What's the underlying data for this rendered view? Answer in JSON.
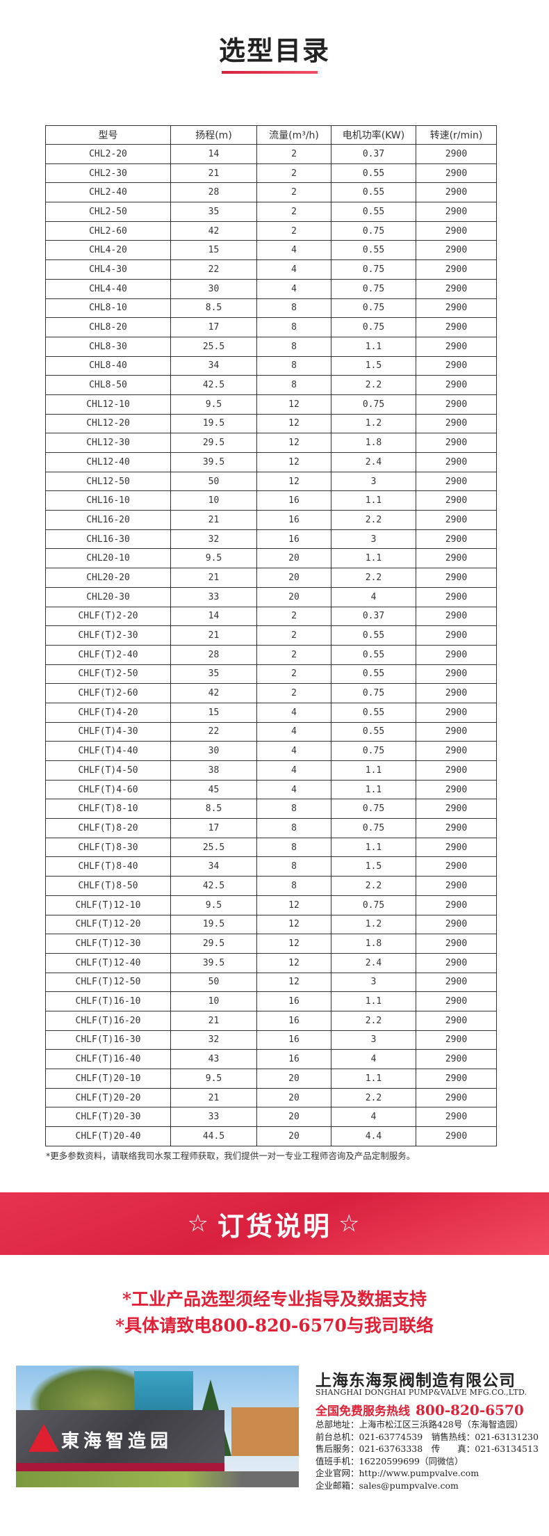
{
  "title": "选型目录",
  "table": {
    "headers": [
      "型号",
      "扬程(m)",
      "流量(m³/h)",
      "电机功率(KW)",
      "转速(r/min)"
    ],
    "rows": [
      [
        "CHL2-20",
        "14",
        "2",
        "0.37",
        "2900"
      ],
      [
        "CHL2-30",
        "21",
        "2",
        "0.55",
        "2900"
      ],
      [
        "CHL2-40",
        "28",
        "2",
        "0.55",
        "2900"
      ],
      [
        "CHL2-50",
        "35",
        "2",
        "0.55",
        "2900"
      ],
      [
        "CHL2-60",
        "42",
        "2",
        "0.75",
        "2900"
      ],
      [
        "CHL4-20",
        "15",
        "4",
        "0.55",
        "2900"
      ],
      [
        "CHL4-30",
        "22",
        "4",
        "0.75",
        "2900"
      ],
      [
        "CHL4-40",
        "30",
        "4",
        "0.75",
        "2900"
      ],
      [
        "CHL8-10",
        "8.5",
        "8",
        "0.75",
        "2900"
      ],
      [
        "CHL8-20",
        "17",
        "8",
        "0.75",
        "2900"
      ],
      [
        "CHL8-30",
        "25.5",
        "8",
        "1.1",
        "2900"
      ],
      [
        "CHL8-40",
        "34",
        "8",
        "1.5",
        "2900"
      ],
      [
        "CHL8-50",
        "42.5",
        "8",
        "2.2",
        "2900"
      ],
      [
        "CHL12-10",
        "9.5",
        "12",
        "0.75",
        "2900"
      ],
      [
        "CHL12-20",
        "19.5",
        "12",
        "1.2",
        "2900"
      ],
      [
        "CHL12-30",
        "29.5",
        "12",
        "1.8",
        "2900"
      ],
      [
        "CHL12-40",
        "39.5",
        "12",
        "2.4",
        "2900"
      ],
      [
        "CHL12-50",
        "50",
        "12",
        "3",
        "2900"
      ],
      [
        "CHL16-10",
        "10",
        "16",
        "1.1",
        "2900"
      ],
      [
        "CHL16-20",
        "21",
        "16",
        "2.2",
        "2900"
      ],
      [
        "CHL16-30",
        "32",
        "16",
        "3",
        "2900"
      ],
      [
        "CHL20-10",
        "9.5",
        "20",
        "1.1",
        "2900"
      ],
      [
        "CHL20-20",
        "21",
        "20",
        "2.2",
        "2900"
      ],
      [
        "CHL20-30",
        "33",
        "20",
        "4",
        "2900"
      ],
      [
        "CHLF(T)2-20",
        "14",
        "2",
        "0.37",
        "2900"
      ],
      [
        "CHLF(T)2-30",
        "21",
        "2",
        "0.55",
        "2900"
      ],
      [
        "CHLF(T)2-40",
        "28",
        "2",
        "0.55",
        "2900"
      ],
      [
        "CHLF(T)2-50",
        "35",
        "2",
        "0.55",
        "2900"
      ],
      [
        "CHLF(T)2-60",
        "42",
        "2",
        "0.75",
        "2900"
      ],
      [
        "CHLF(T)4-20",
        "15",
        "4",
        "0.55",
        "2900"
      ],
      [
        "CHLF(T)4-30",
        "22",
        "4",
        "0.55",
        "2900"
      ],
      [
        "CHLF(T)4-40",
        "30",
        "4",
        "0.75",
        "2900"
      ],
      [
        "CHLF(T)4-50",
        "38",
        "4",
        "1.1",
        "2900"
      ],
      [
        "CHLF(T)4-60",
        "45",
        "4",
        "1.1",
        "2900"
      ],
      [
        "CHLF(T)8-10",
        "8.5",
        "8",
        "0.75",
        "2900"
      ],
      [
        "CHLF(T)8-20",
        "17",
        "8",
        "0.75",
        "2900"
      ],
      [
        "CHLF(T)8-30",
        "25.5",
        "8",
        "1.1",
        "2900"
      ],
      [
        "CHLF(T)8-40",
        "34",
        "8",
        "1.5",
        "2900"
      ],
      [
        "CHLF(T)8-50",
        "42.5",
        "8",
        "2.2",
        "2900"
      ],
      [
        "CHLF(T)12-10",
        "9.5",
        "12",
        "0.75",
        "2900"
      ],
      [
        "CHLF(T)12-20",
        "19.5",
        "12",
        "1.2",
        "2900"
      ],
      [
        "CHLF(T)12-30",
        "29.5",
        "12",
        "1.8",
        "2900"
      ],
      [
        "CHLF(T)12-40",
        "39.5",
        "12",
        "2.4",
        "2900"
      ],
      [
        "CHLF(T)12-50",
        "50",
        "12",
        "3",
        "2900"
      ],
      [
        "CHLF(T)16-10",
        "10",
        "16",
        "1.1",
        "2900"
      ],
      [
        "CHLF(T)16-20",
        "21",
        "16",
        "2.2",
        "2900"
      ],
      [
        "CHLF(T)16-30",
        "32",
        "16",
        "3",
        "2900"
      ],
      [
        "CHLF(T)16-40",
        "43",
        "16",
        "4",
        "2900"
      ],
      [
        "CHLF(T)20-10",
        "9.5",
        "20",
        "1.1",
        "2900"
      ],
      [
        "CHLF(T)20-20",
        "21",
        "20",
        "2.2",
        "2900"
      ],
      [
        "CHLF(T)20-30",
        "33",
        "20",
        "4",
        "2900"
      ],
      [
        "CHLF(T)20-40",
        "44.5",
        "20",
        "4.4",
        "2900"
      ]
    ]
  },
  "note": "*更多参数资料，请联络我司水泵工程师获取，我们提供一对一专业工程师咨询及产品定制服务。",
  "order": {
    "star": "☆",
    "title": "订货说明",
    "line1": "*工业产品选型须经专业指导及数据支持",
    "line2": "*具体请致电800-820-6570与我司联络"
  },
  "photo": {
    "sign": "東海智造园"
  },
  "company": {
    "name": "上海东海泵阀制造有限公司",
    "english": "SHANGHAI DONGHAI PUMP&VALVE MFG.CO.,LTD.",
    "hotline_label": "全国免费服务热线",
    "hotline": "800-820-6570",
    "lines": [
      "总部地址：上海市松江区三浜路428号（东海智造园）",
      "前台总机：021-63774539　销售热线：021-63131230",
      "售后服务：021-63763338　传　　真：021-63134513",
      "值班手机：16220599699（同微信）",
      "企业官网：http://www.pumpvalve.com",
      "企业邮箱：sales@pumpvalve.com"
    ]
  },
  "colors": {
    "accent": "#e02036",
    "band": "#e2294a"
  }
}
